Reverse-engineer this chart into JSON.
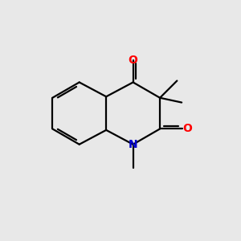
{
  "background_color": "#e8e8e8",
  "bond_color": "#000000",
  "N_color": "#0000cc",
  "O_color": "#ff0000",
  "line_width": 1.6,
  "figsize": [
    3.0,
    3.0
  ],
  "dpi": 100,
  "bl": 0.13,
  "C4a": [
    0.44,
    0.6
  ],
  "C8a": [
    0.44,
    0.46
  ]
}
